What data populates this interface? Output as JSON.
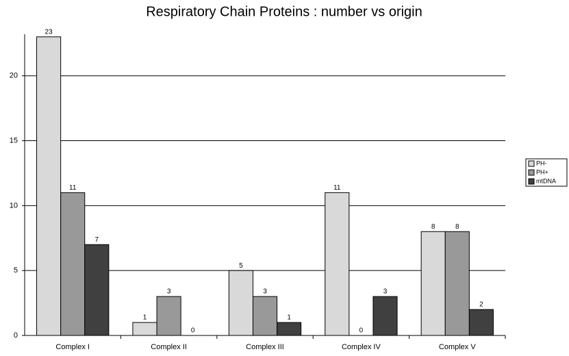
{
  "chart_data": {
    "type": "bar",
    "title": "Respiratory Chain Proteins : number vs origin",
    "categories": [
      "Complex I",
      "Complex II",
      "Complex III",
      "Complex IV",
      "Complex V"
    ],
    "series": [
      {
        "name": "PH-",
        "color": "#d9d9d9",
        "values": [
          23,
          1,
          5,
          11,
          8
        ]
      },
      {
        "name": "PH+",
        "color": "#999999",
        "values": [
          11,
          3,
          3,
          0,
          8
        ]
      },
      {
        "name": "mtDNA",
        "color": "#404040",
        "values": [
          7,
          0,
          1,
          3,
          2
        ]
      }
    ],
    "ylim": [
      0,
      23.2
    ],
    "yticks": [
      0,
      5,
      10,
      15,
      20
    ],
    "grid": true,
    "legend": "right"
  }
}
